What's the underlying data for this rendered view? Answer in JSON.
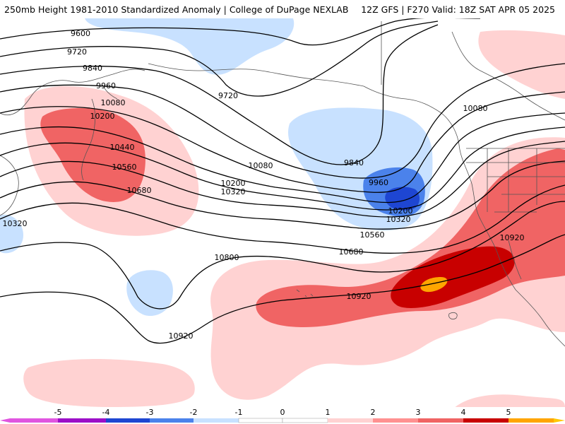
{
  "header": {
    "left_title": "250mb Height 1981-2010 Standardized Anomaly | College of DuPage NEXLAB",
    "right_title": "12Z GFS | F270 Valid: 18Z SAT APR 05 2025"
  },
  "map": {
    "contour_labels": [
      "9600",
      "9720",
      "9840",
      "9960",
      "10080",
      "10200",
      "10440",
      "10560",
      "10680",
      "10320",
      "9720",
      "10080",
      "9840",
      "9960",
      "10080",
      "10200",
      "10320",
      "10200",
      "10320",
      "10560",
      "10680",
      "10800",
      "10920",
      "10920",
      "10920"
    ],
    "colors": {
      "neg5": "#e055e0",
      "neg4": "#9c0fc8",
      "neg3": "#1e46d2",
      "neg2": "#4b82eb",
      "neg1": "#c8e1ff",
      "pos1": "#ffd2d2",
      "pos2": "#ff9191",
      "pos3": "#f06464",
      "pos4": "#c80000",
      "pos5": "#ffa500",
      "pos6": "#ffc800",
      "contour": "#000000",
      "coast": "#555555"
    }
  },
  "legend": {
    "ticks": [
      "-5",
      "-4",
      "-3",
      "-2",
      "-1",
      "0",
      "1",
      "2",
      "3",
      "4",
      "5"
    ],
    "colors": [
      "#e055e0",
      "#9c0fc8",
      "#1e46d2",
      "#4b82eb",
      "#c8e1ff",
      "#ffffff",
      "#ffffff",
      "#ffd2d2",
      "#ff9191",
      "#f06464",
      "#c80000",
      "#ffa500",
      "#ffc800"
    ]
  }
}
